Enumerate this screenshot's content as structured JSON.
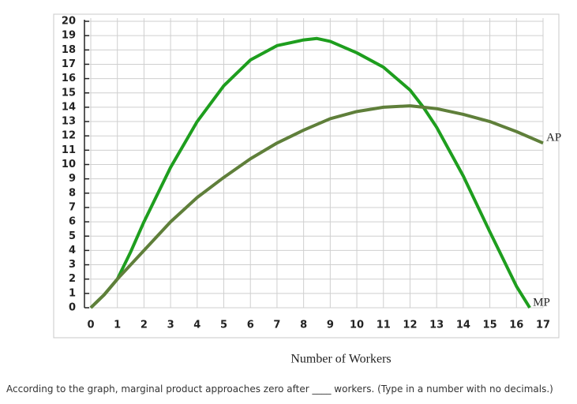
{
  "chart_data": {
    "type": "line",
    "xlabel": "Number of Workers",
    "xlim": [
      0,
      17
    ],
    "xticks": [
      0,
      1,
      2,
      3,
      4,
      5,
      6,
      7,
      8,
      9,
      10,
      11,
      12,
      13,
      14,
      15,
      16,
      17
    ],
    "ylim": [
      0,
      20
    ],
    "yticks": [
      0,
      1,
      2,
      3,
      4,
      5,
      6,
      7,
      8,
      9,
      10,
      11,
      12,
      13,
      14,
      15,
      16,
      17,
      18,
      19,
      20
    ],
    "grid": true,
    "series": [
      {
        "name": "MP",
        "color": "#1e9e1e",
        "x": [
          0,
          0.5,
          1,
          1.5,
          2,
          3,
          4,
          5,
          6,
          7,
          8,
          8.5,
          9,
          10,
          11,
          12,
          12.5,
          13,
          14,
          15,
          16,
          16.5
        ],
        "values": [
          0,
          0.9,
          2,
          3.9,
          6,
          9.8,
          13,
          15.5,
          17.3,
          18.3,
          18.7,
          18.8,
          18.6,
          17.8,
          16.8,
          15.2,
          14,
          12.6,
          9.2,
          5.3,
          1.5,
          0
        ]
      },
      {
        "name": "AP",
        "color": "#5f7f3a",
        "x": [
          0,
          0.5,
          1,
          2,
          3,
          4,
          5,
          6,
          7,
          8,
          9,
          10,
          11,
          12,
          12.5,
          13,
          14,
          15,
          16,
          17
        ],
        "values": [
          0,
          0.9,
          2,
          4,
          6,
          7.7,
          9.1,
          10.4,
          11.5,
          12.4,
          13.2,
          13.7,
          14,
          14.1,
          14,
          13.9,
          13.5,
          13,
          12.3,
          11.5
        ]
      }
    ]
  },
  "question": "According to the graph, marginal product approaches zero after ____ workers. (Type in a number with no decimals.)"
}
